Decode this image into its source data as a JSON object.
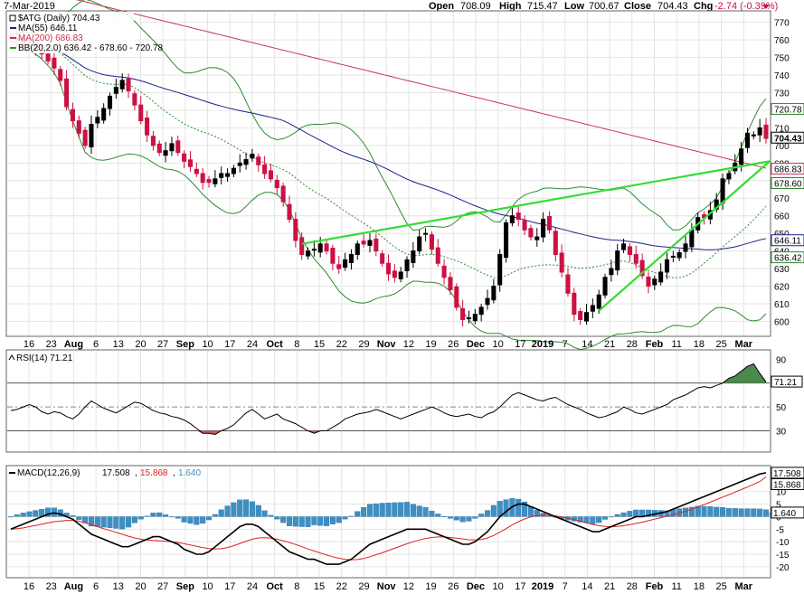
{
  "header": {
    "date": "7-Mar-2019",
    "open_label": "Open",
    "open": "708.09",
    "high_label": "High",
    "high": "715.47",
    "low_label": "Low",
    "low": "700.67",
    "close_label": "Close",
    "close": "704.43",
    "chg_label": "Chg",
    "chg": "-2.74 (-0.39%)"
  },
  "colors": {
    "up_candle": "#000000",
    "down_candle": "#cc1144",
    "ma55": "#1b1f8a",
    "ma200": "#c8334f",
    "bb": "#2e8b2e",
    "trendline": "#33dd33",
    "macd": "#000000",
    "signal": "#dd2222",
    "hist": "#3d8fc4",
    "rsi_fill_high": "#4a8a4a",
    "rsi_fill_low": "#c85a5a"
  },
  "chart_data": [
    {
      "type": "candlestick",
      "title": "$ATG (Daily) 704.43",
      "legend": [
        {
          "label": "$ATG (Daily) 704.43",
          "color": "#000000"
        },
        {
          "label": "MA(55) 646.11",
          "color": "#1b1f8a"
        },
        {
          "label": "MA(200) 686.83",
          "color": "#c8334f"
        },
        {
          "label": "BB(20,2.0) 636.42 - 678.60 - 720.78",
          "color": "#2e8b2e"
        }
      ],
      "legend_placement": "top-left",
      "ylim": [
        592,
        776
      ],
      "y_ticks": [
        600,
        610,
        620,
        630,
        640,
        650,
        660,
        670,
        680,
        690,
        700,
        710,
        720,
        730,
        740,
        750,
        760,
        770
      ],
      "last_value_labels": [
        {
          "value": 720.78,
          "text": "720.78",
          "color": "#2e8b2e"
        },
        {
          "value": 704.43,
          "text": "704.43",
          "color": "#000000"
        },
        {
          "value": 686.83,
          "text": "686.83",
          "color": "#c8334f"
        },
        {
          "value": 678.6,
          "text": "678.60",
          "color": "#2e8b2e"
        },
        {
          "value": 646.11,
          "text": "646.11",
          "color": "#1b1f8a"
        },
        {
          "value": 636.42,
          "text": "636.42",
          "color": "#2e8b2e"
        }
      ],
      "close": [
        761,
        760,
        758,
        757,
        755,
        752,
        748,
        744,
        737,
        722,
        714,
        707,
        700,
        712,
        716,
        721,
        728,
        733,
        737,
        731,
        723,
        714,
        706,
        700,
        696,
        697,
        701,
        696,
        691,
        688,
        684,
        679,
        679,
        681,
        684,
        684,
        687,
        690,
        692,
        695,
        689,
        684,
        681,
        676,
        668,
        658,
        646,
        638,
        640,
        641,
        644,
        640,
        633,
        630,
        635,
        638,
        644,
        644,
        646,
        640,
        633,
        627,
        625,
        628,
        635,
        640,
        648,
        650,
        641,
        633,
        625,
        618,
        608,
        601,
        602,
        604,
        608,
        613,
        620,
        638,
        656,
        660,
        658,
        652,
        648,
        648,
        658,
        652,
        638,
        628,
        616,
        604,
        601,
        605,
        609,
        615,
        625,
        630,
        640,
        644,
        638,
        633,
        626,
        620,
        624,
        628,
        635,
        637,
        639,
        644,
        652,
        659,
        659,
        663,
        669,
        681,
        684,
        690,
        698,
        707,
        706,
        710,
        704
      ],
      "x_tick_labels": [
        "16",
        "23",
        "Aug",
        "6",
        "13",
        "20",
        "27",
        "Sep",
        "10",
        "17",
        "24",
        "Oct",
        "8",
        "15",
        "22",
        "29",
        "Nov",
        "12",
        "19",
        "26",
        "Dec",
        "10",
        "17",
        "2019",
        "7",
        "14",
        "21",
        "28",
        "Feb",
        "11",
        "18",
        "25",
        "Mar"
      ],
      "trendlines": [
        {
          "from": [
            "2018-10-08",
            644
          ],
          "to": [
            "2019-03-07",
            691
          ]
        },
        {
          "from": [
            "2019-01-15",
            606
          ],
          "to": [
            "2019-03-07",
            691
          ]
        }
      ]
    },
    {
      "type": "line",
      "title": "RSI(14) 71.21",
      "ylim": [
        13,
        97
      ],
      "y_ticks": [
        30,
        50,
        70,
        90
      ],
      "reference_lines": [
        30,
        50,
        70
      ],
      "last_value": "71.21",
      "values": [
        47,
        48,
        50,
        52,
        50,
        46,
        44,
        46,
        45,
        42,
        40,
        44,
        50,
        55,
        52,
        49,
        47,
        45,
        48,
        51,
        54,
        53,
        50,
        47,
        45,
        44,
        42,
        41,
        39,
        36,
        32,
        28,
        28,
        27,
        30,
        32,
        35,
        40,
        45,
        48,
        44,
        40,
        42,
        44,
        40,
        38,
        36,
        33,
        30,
        28,
        30,
        30,
        33,
        36,
        40,
        42,
        44,
        45,
        46,
        48,
        46,
        44,
        42,
        40,
        42,
        44,
        46,
        48,
        50,
        48,
        45,
        43,
        42,
        43,
        44,
        42,
        41,
        44,
        46,
        50,
        55,
        60,
        62,
        60,
        58,
        56,
        55,
        57,
        58,
        55,
        52,
        50,
        48,
        45,
        43,
        41,
        42,
        44,
        46,
        50,
        48,
        45,
        44,
        46,
        48,
        50,
        52,
        56,
        58,
        60,
        63,
        66,
        67,
        66,
        68,
        70,
        74,
        76,
        80,
        84,
        86,
        78,
        71
      ]
    },
    {
      "type": "line",
      "title": "MACD(12,26,9) 17.508, 15.868, 1.640",
      "legend": [
        {
          "label": "MACD(12,26,9)",
          "color": "#000000"
        },
        {
          "label": "17.508",
          "color": "#000000"
        },
        {
          "label": "15.868",
          "color": "#dd2222"
        },
        {
          "label": "1.640",
          "color": "#3d8fc4"
        }
      ],
      "ylim": [
        -24,
        20
      ],
      "y_ticks": [
        -20,
        -15,
        -10,
        -5,
        0,
        5,
        10
      ],
      "last_value_labels": [
        {
          "value": 17.508,
          "text": "17.508"
        },
        {
          "value": 15.868,
          "text": "15.868"
        },
        {
          "value": 1.64,
          "text": "1.640"
        }
      ],
      "series": [
        {
          "name": "MACD",
          "values": [
            -5,
            -4,
            -3,
            -2,
            -1,
            0,
            1,
            1.5,
            1,
            0,
            -1,
            -3,
            -5,
            -7,
            -8,
            -9,
            -10,
            -11,
            -12,
            -12,
            -11,
            -10,
            -9,
            -8,
            -8,
            -9,
            -10,
            -11,
            -13,
            -14,
            -15,
            -15,
            -14,
            -12,
            -10,
            -8,
            -6,
            -4,
            -3,
            -3,
            -4,
            -6,
            -8,
            -10,
            -12,
            -14,
            -15,
            -16,
            -17,
            -17,
            -18,
            -19,
            -19,
            -19,
            -18,
            -17,
            -15,
            -13,
            -11,
            -10,
            -9,
            -8,
            -7,
            -6,
            -5,
            -5,
            -5,
            -5,
            -6,
            -7,
            -8,
            -9,
            -10,
            -11,
            -11,
            -10,
            -8,
            -6,
            -3,
            0,
            2,
            4,
            5,
            5,
            4,
            3,
            2,
            1,
            0,
            -1,
            -2,
            -3,
            -4,
            -5,
            -6,
            -6,
            -5,
            -4,
            -3,
            -2,
            -1,
            0,
            0,
            0.5,
            1,
            1.5,
            2,
            3,
            4,
            5,
            6,
            7,
            8,
            9,
            10,
            11,
            12,
            13,
            14,
            15,
            16,
            17,
            17.508
          ]
        },
        {
          "name": "Signal",
          "values": [
            -5,
            -4.8,
            -4.5,
            -4,
            -3.5,
            -3,
            -2.5,
            -2,
            -1.8,
            -1.5,
            -1.5,
            -1.8,
            -2.5,
            -3.2,
            -4,
            -4.8,
            -5.5,
            -6.3,
            -7,
            -7.8,
            -8.5,
            -9,
            -9.3,
            -9.5,
            -9.6,
            -9.8,
            -10,
            -10.3,
            -10.8,
            -11.3,
            -11.8,
            -12.3,
            -12.7,
            -12.9,
            -12.8,
            -12.3,
            -11.6,
            -10.7,
            -9.8,
            -9,
            -8.5,
            -8.4,
            -8.6,
            -9,
            -9.6,
            -10.3,
            -11.1,
            -12,
            -12.9,
            -13.7,
            -14.5,
            -15.3,
            -16,
            -16.6,
            -17,
            -17.2,
            -17.1,
            -16.7,
            -16,
            -15.2,
            -14.4,
            -13.5,
            -12.6,
            -11.7,
            -10.8,
            -10,
            -9.3,
            -8.7,
            -8.3,
            -8.1,
            -8.1,
            -8.3,
            -8.6,
            -8.9,
            -9.2,
            -9.3,
            -9.1,
            -8.5,
            -7.5,
            -6.2,
            -4.8,
            -3.3,
            -2,
            -0.9,
            -0.1,
            0.4,
            0.6,
            0.6,
            0.3,
            -0.1,
            -0.6,
            -1.2,
            -1.8,
            -2.5,
            -3.1,
            -3.6,
            -3.9,
            -4,
            -3.9,
            -3.6,
            -3.2,
            -2.7,
            -2.2,
            -1.6,
            -1,
            -0.4,
            0.2,
            0.8,
            1.5,
            2.2,
            3,
            3.9,
            4.8,
            5.8,
            6.8,
            7.8,
            8.8,
            9.8,
            10.8,
            11.8,
            12.9,
            14,
            15.868
          ]
        },
        {
          "name": "Histogram",
          "values": [
            0,
            0.8,
            1.5,
            2,
            2.5,
            3,
            3.5,
            3.5,
            2.8,
            1.5,
            0.5,
            -1.2,
            -2.5,
            -3.8,
            -4,
            -4.2,
            -4.5,
            -4.7,
            -5,
            -4.2,
            -2.5,
            -1,
            0.3,
            1.5,
            1.6,
            0.8,
            0,
            -0.7,
            -2.2,
            -2.7,
            -3.2,
            -2.7,
            -1.3,
            0.9,
            2.8,
            4.3,
            5.6,
            6.7,
            6.8,
            6,
            4.5,
            2.4,
            0.6,
            -1,
            -2.4,
            -3.7,
            -3.9,
            -4,
            -4.1,
            -3.3,
            -3.5,
            -3.7,
            -3,
            -2.4,
            -1,
            0.2,
            2.1,
            3.7,
            5,
            5.2,
            5.4,
            5.5,
            5.6,
            5.7,
            5.8,
            5,
            4.3,
            3.7,
            2.3,
            1.1,
            0.1,
            -0.7,
            -1.4,
            -2.1,
            -1.8,
            -0.7,
            1.1,
            2.5,
            4.5,
            6.2,
            6.8,
            7.3,
            7,
            5.9,
            4.1,
            2.6,
            1.4,
            0.4,
            -0.3,
            -0.9,
            -1.4,
            -1.8,
            -2.2,
            -2.5,
            -2.9,
            -2.4,
            -1.1,
            0,
            0.9,
            1.6,
            2.2,
            2.7,
            2.7,
            2.7,
            2.6,
            2.5,
            2.4,
            2.8,
            3.2,
            3.5,
            3.8,
            4.2,
            4.1,
            4.1,
            3.8,
            3.7,
            3.3,
            3.3,
            3.2,
            3.2,
            3.2,
            3.1,
            2.8,
            1.64
          ]
        }
      ]
    }
  ]
}
